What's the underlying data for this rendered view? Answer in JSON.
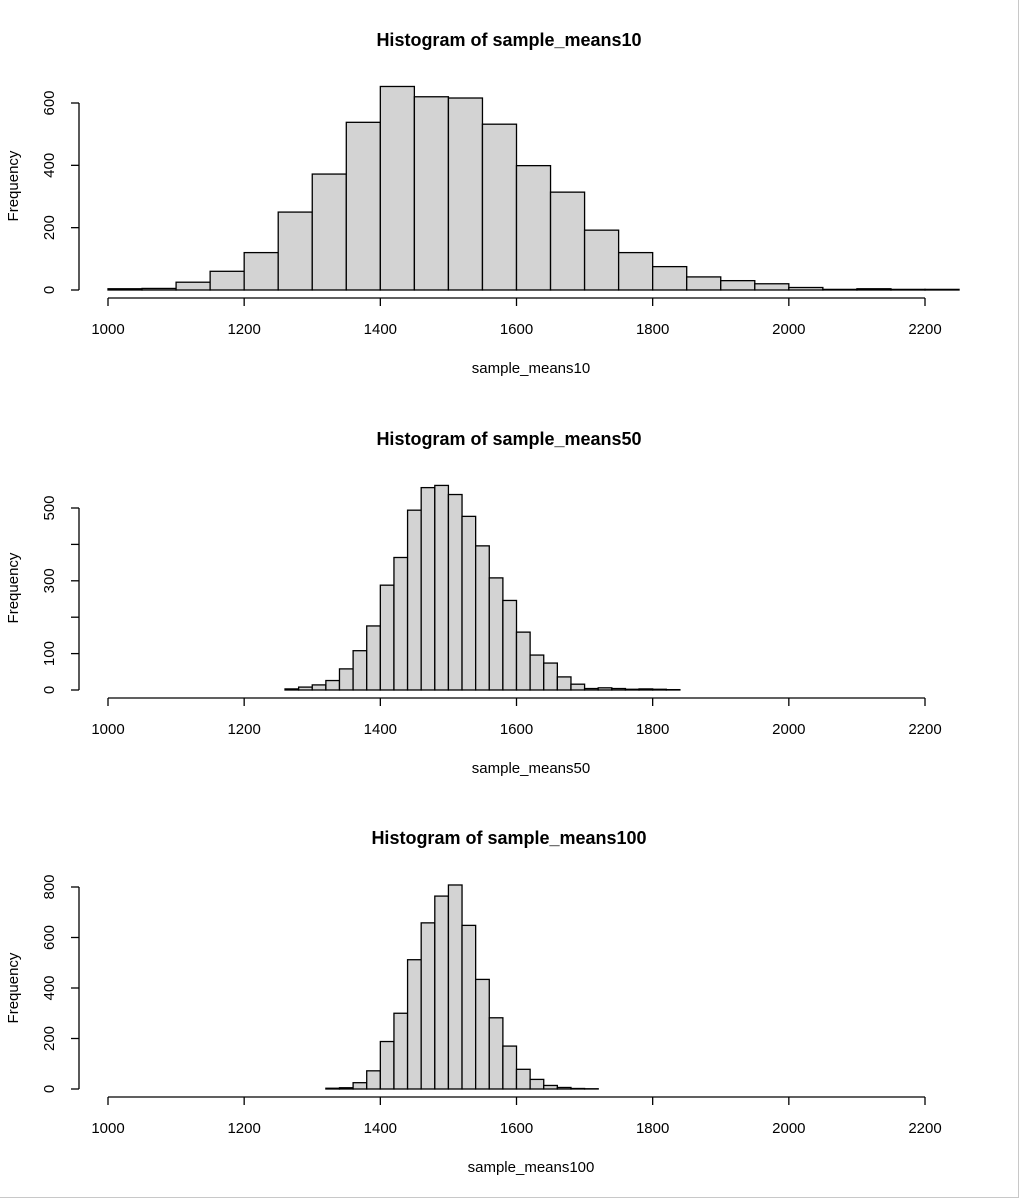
{
  "chart_data": [
    {
      "type": "bar",
      "title": "Histogram of sample_means10",
      "xlabel": "sample_means10",
      "ylabel": "Frequency",
      "xlim": [
        1000,
        2200
      ],
      "ylim": [
        0,
        600
      ],
      "xticks": [
        1000,
        1200,
        1400,
        1600,
        1800,
        2000,
        2200
      ],
      "yticks": [
        0,
        200,
        400,
        600
      ],
      "ytick_labels_shown": [
        "0",
        "200",
        "400",
        "600"
      ],
      "bin_width": 50,
      "bins_start": [
        1000,
        1050,
        1100,
        1150,
        1200,
        1250,
        1300,
        1350,
        1400,
        1450,
        1500,
        1550,
        1600,
        1650,
        1700,
        1750,
        1800,
        1850,
        1900,
        1950,
        2000,
        2050,
        2100,
        2150,
        2200
      ],
      "values": [
        4,
        5,
        25,
        60,
        120,
        250,
        372,
        538,
        653,
        620,
        616,
        532,
        399,
        314,
        192,
        120,
        75,
        42,
        30,
        20,
        8,
        2,
        4,
        2,
        2
      ],
      "grid": false,
      "bar_color": "#d3d3d3"
    },
    {
      "type": "bar",
      "title": "Histogram of sample_means50",
      "xlabel": "sample_means50",
      "ylabel": "Frequency",
      "xlim": [
        1000,
        2200
      ],
      "ylim": [
        0,
        500
      ],
      "xticks": [
        1000,
        1200,
        1400,
        1600,
        1800,
        2000,
        2200
      ],
      "yticks": [
        0,
        100,
        200,
        300,
        400,
        500
      ],
      "ytick_labels_shown": [
        "0",
        "100",
        "300",
        "500"
      ],
      "bin_width": 20,
      "bins_start": [
        1260,
        1280,
        1300,
        1320,
        1340,
        1360,
        1380,
        1400,
        1420,
        1440,
        1460,
        1480,
        1500,
        1520,
        1540,
        1560,
        1580,
        1600,
        1620,
        1640,
        1660,
        1680,
        1700,
        1720,
        1740,
        1760,
        1780,
        1800,
        1820
      ],
      "values": [
        3,
        8,
        14,
        26,
        58,
        108,
        176,
        288,
        364,
        494,
        556,
        562,
        537,
        477,
        396,
        308,
        246,
        159,
        96,
        74,
        36,
        16,
        4,
        6,
        4,
        2,
        3,
        2,
        1
      ],
      "grid": false,
      "bar_color": "#d3d3d3"
    },
    {
      "type": "bar",
      "title": "Histogram of sample_means100",
      "xlabel": "sample_means100",
      "ylabel": "Frequency",
      "xlim": [
        1000,
        2200
      ],
      "ylim": [
        0,
        800
      ],
      "xticks": [
        1000,
        1200,
        1400,
        1600,
        1800,
        2000,
        2200
      ],
      "yticks": [
        0,
        200,
        400,
        600,
        800
      ],
      "ytick_labels_shown": [
        "0",
        "200",
        "400",
        "600",
        "800"
      ],
      "bin_width": 20,
      "bins_start": [
        1320,
        1340,
        1360,
        1380,
        1400,
        1420,
        1440,
        1460,
        1480,
        1500,
        1520,
        1540,
        1560,
        1580,
        1600,
        1620,
        1640,
        1660,
        1680,
        1700
      ],
      "values": [
        3,
        5,
        25,
        72,
        188,
        300,
        512,
        658,
        764,
        808,
        648,
        434,
        282,
        170,
        78,
        38,
        14,
        6,
        2,
        1
      ],
      "grid": false,
      "bar_color": "#d3d3d3"
    }
  ]
}
